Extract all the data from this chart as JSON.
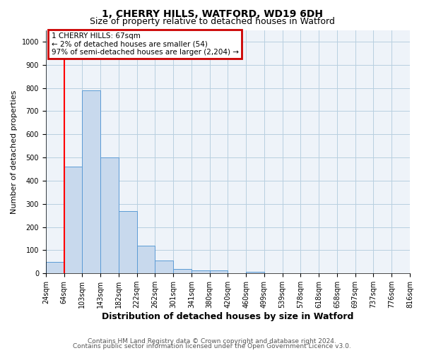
{
  "title": "1, CHERRY HILLS, WATFORD, WD19 6DH",
  "subtitle": "Size of property relative to detached houses in Watford",
  "xlabel": "Distribution of detached houses by size in Watford",
  "ylabel": "Number of detached properties",
  "bins": [
    "24sqm",
    "64sqm",
    "103sqm",
    "143sqm",
    "182sqm",
    "222sqm",
    "262sqm",
    "301sqm",
    "341sqm",
    "380sqm",
    "420sqm",
    "460sqm",
    "499sqm",
    "539sqm",
    "578sqm",
    "618sqm",
    "658sqm",
    "697sqm",
    "737sqm",
    "776sqm",
    "816sqm"
  ],
  "bar_heights": [
    50,
    460,
    790,
    500,
    270,
    120,
    55,
    20,
    12,
    12,
    0,
    8,
    0,
    0,
    0,
    0,
    0,
    0,
    0,
    0
  ],
  "bar_color": "#c8d9ed",
  "bar_edge_color": "#5b9bd5",
  "grid_color": "#b8cfe0",
  "annotation_box_text": "1 CHERRY HILLS: 67sqm\n← 2% of detached houses are smaller (54)\n97% of semi-detached houses are larger (2,204) →",
  "annotation_box_color": "#cc0000",
  "red_line_x": 1,
  "ylim": [
    0,
    1050
  ],
  "yticks": [
    0,
    100,
    200,
    300,
    400,
    500,
    600,
    700,
    800,
    900,
    1000
  ],
  "footer_line1": "Contains HM Land Registry data © Crown copyright and database right 2024.",
  "footer_line2": "Contains public sector information licensed under the Open Government Licence v3.0.",
  "title_fontsize": 10,
  "subtitle_fontsize": 9,
  "xlabel_fontsize": 9,
  "ylabel_fontsize": 8,
  "tick_fontsize": 7,
  "footer_fontsize": 6.5,
  "ann_fontsize": 7.5
}
